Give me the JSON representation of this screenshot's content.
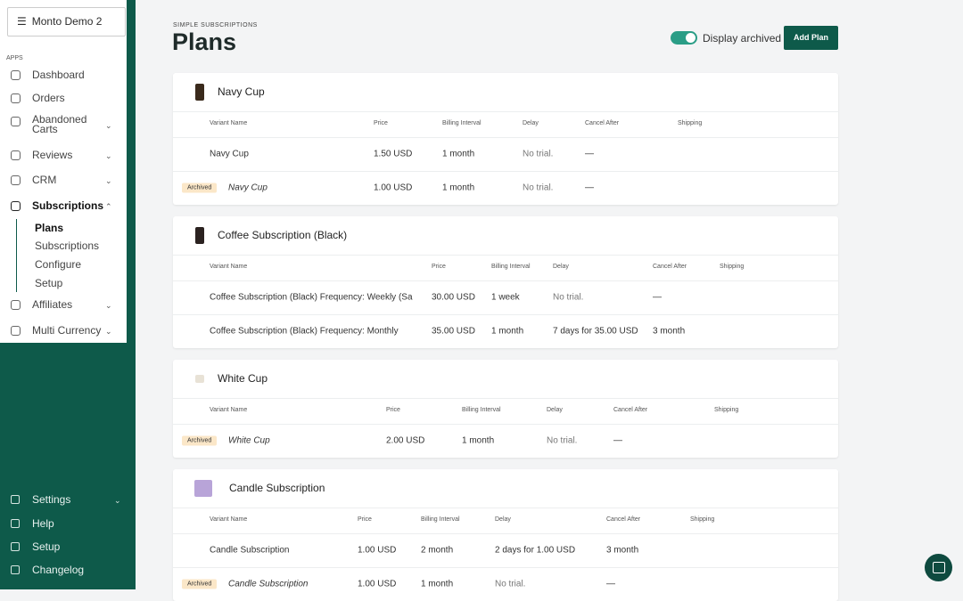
{
  "workspace": "Monto Demo 2",
  "sidebar": {
    "section": "APPS",
    "items": [
      "Dashboard",
      "Orders",
      "Abandoned Carts",
      "Reviews",
      "CRM",
      "Subscriptions",
      "Affiliates",
      "Multi Currency"
    ],
    "sub_items": [
      "Plans",
      "Subscriptions",
      "Configure",
      "Setup"
    ],
    "footer_items": [
      "Settings",
      "Help",
      "Setup",
      "Changelog"
    ]
  },
  "header": {
    "eyebrow": "SIMPLE SUBSCRIPTIONS",
    "title": "Plans",
    "toggle_label": "Display archived",
    "button": "Add Plan"
  },
  "columns": [
    "Variant Name",
    "Price",
    "Billing Interval",
    "Delay",
    "Cancel After",
    "Shipping"
  ],
  "archived_badge": "Archived",
  "plans": [
    {
      "name": "Navy Cup",
      "rows": [
        {
          "archived": false,
          "cells": [
            "Navy Cup",
            "1.50 USD",
            "1 month",
            "No trial.",
            "—"
          ]
        },
        {
          "archived": true,
          "cells": [
            "Navy Cup",
            "1.00 USD",
            "1 month",
            "No trial.",
            "—"
          ]
        }
      ]
    },
    {
      "name": "Coffee Subscription (Black)",
      "rows": [
        {
          "archived": false,
          "cells": [
            "Coffee Subscription (Black) Frequency: Weekly (Sa",
            "30.00 USD",
            "1 week",
            "No trial.",
            "—"
          ]
        },
        {
          "archived": false,
          "cells": [
            "Coffee Subscription (Black) Frequency: Monthly",
            "35.00 USD",
            "1 month",
            "7 days for 35.00 USD",
            "3 month"
          ]
        }
      ]
    },
    {
      "name": "White Cup",
      "rows": [
        {
          "archived": true,
          "cells": [
            "White Cup",
            "2.00 USD",
            "1 month",
            "No trial.",
            "—"
          ]
        }
      ]
    },
    {
      "name": "Candle Subscription",
      "rows": [
        {
          "archived": false,
          "cells": [
            "Candle Subscription",
            "1.00 USD",
            "2 month",
            "2 days for 1.00 USD",
            "3 month"
          ]
        },
        {
          "archived": true,
          "cells": [
            "Candle Subscription",
            "1.00 USD",
            "1 month",
            "No trial.",
            "—"
          ]
        }
      ]
    }
  ]
}
